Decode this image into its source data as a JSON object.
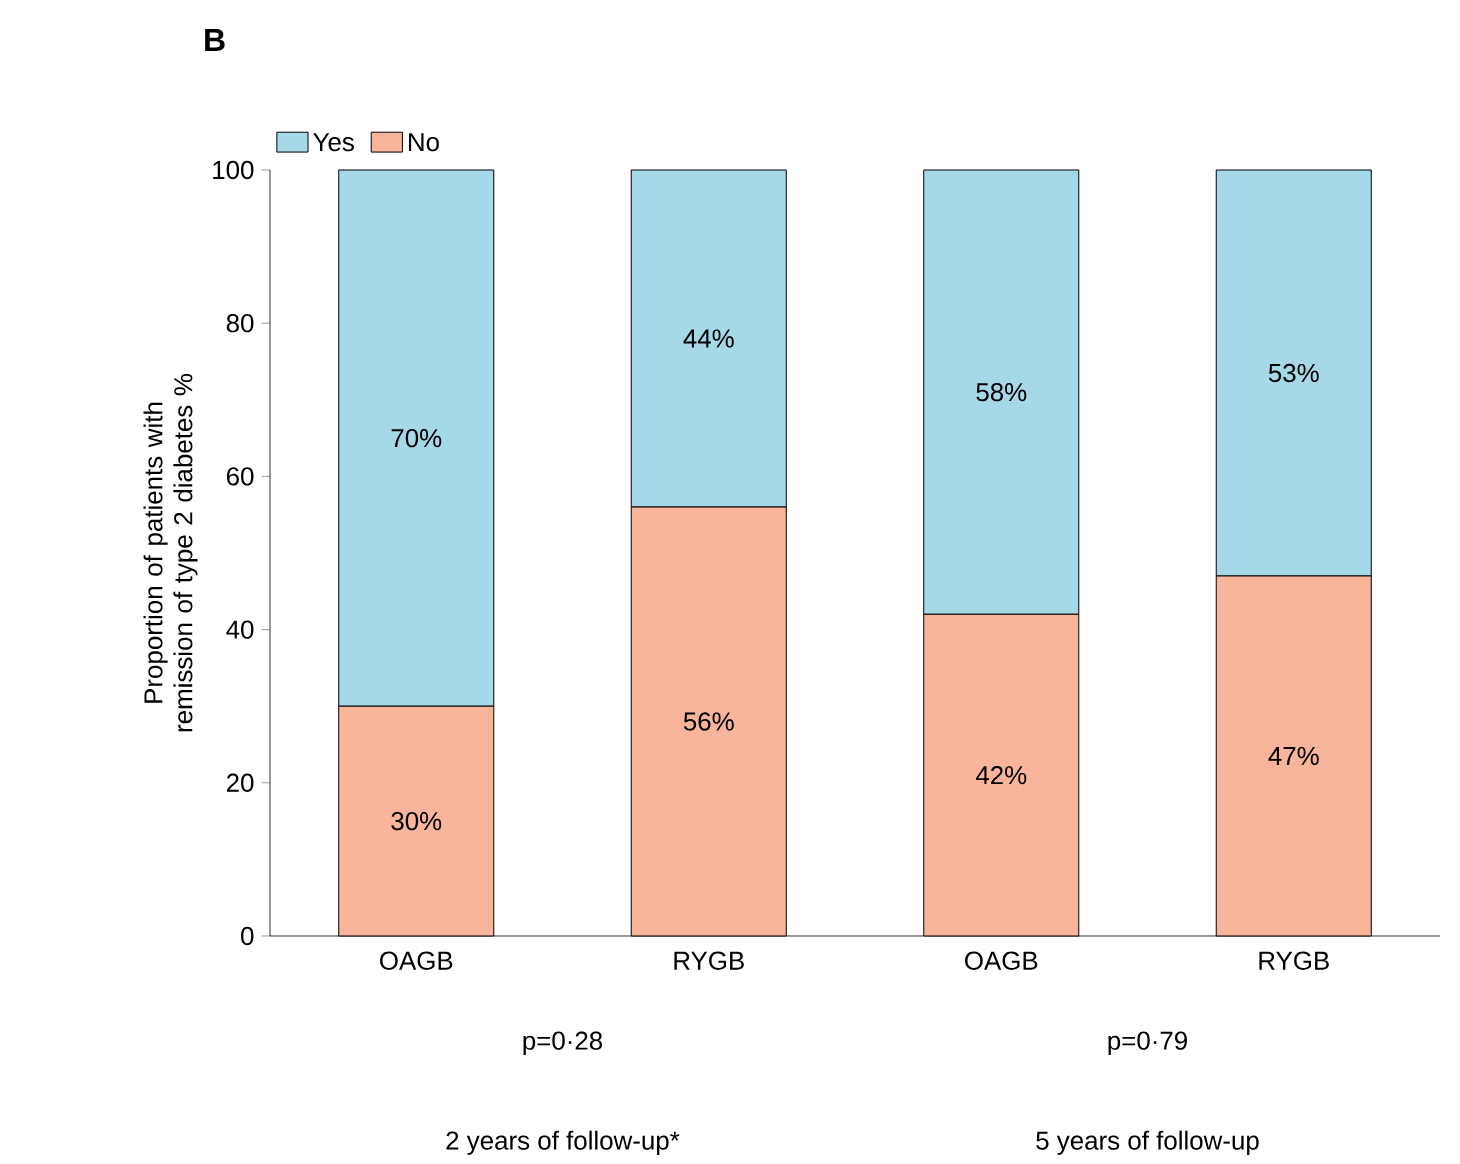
{
  "chart_data": {
    "type": "bar",
    "stacked": true,
    "title": "B",
    "ylabel": "Proportion of patients with remission of type 2 diabetes %",
    "categories": [
      "OAGB",
      "RYGB",
      "OAGB",
      "RYGB"
    ],
    "series": [
      {
        "name": "No",
        "color": "#f9b59b",
        "values": [
          30,
          56,
          42,
          47
        ],
        "value_labels": [
          "30%",
          "56%",
          "42%",
          "47%"
        ]
      },
      {
        "name": "Yes",
        "color": "#a6d9e8",
        "values": [
          70,
          44,
          58,
          53
        ],
        "value_labels": [
          "70%",
          "44%",
          "58%",
          "53%"
        ]
      }
    ],
    "ylim": [
      0,
      100
    ],
    "yticks": [
      0,
      20,
      40,
      60,
      80,
      100
    ],
    "grid": false,
    "legend": "top left",
    "annotations": [
      "p=0·28",
      "p=0·79",
      "2 years of follow-up*",
      "5 years of follow-up"
    ]
  }
}
